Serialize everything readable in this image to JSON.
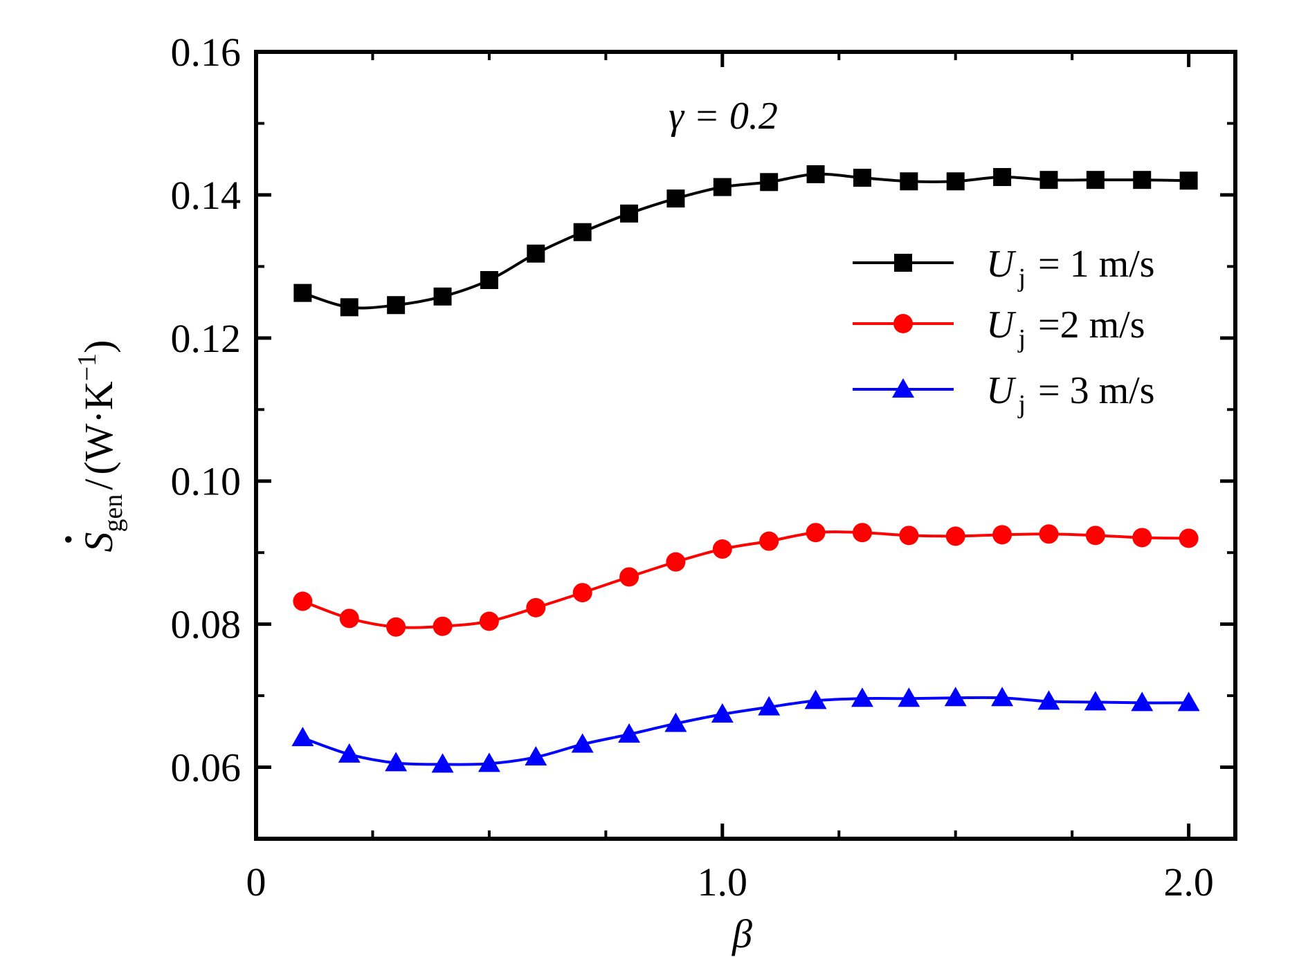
{
  "chart_data": {
    "type": "line",
    "xlabel": "β",
    "ylabel": {
      "symbol": "S",
      "dot": "·",
      "subscript": "gen",
      "slash": "/",
      "units": "(W·K",
      "superscript": "−1",
      "close": ")"
    },
    "annotation": "γ = 0.2",
    "xlim": [
      0,
      2.1
    ],
    "ylim": [
      0.05,
      0.16
    ],
    "xticks": [
      {
        "value": 0,
        "label": "0"
      },
      {
        "value": 1.0,
        "label": "1.0"
      },
      {
        "value": 2.0,
        "label": "2.0"
      }
    ],
    "xminor": [
      0.25,
      0.5,
      0.75,
      1.25,
      1.5,
      1.75
    ],
    "yticks": [
      {
        "value": 0.06,
        "label": "0.06"
      },
      {
        "value": 0.08,
        "label": "0.08"
      },
      {
        "value": 0.1,
        "label": "0.10"
      },
      {
        "value": 0.12,
        "label": "0.12"
      },
      {
        "value": 0.14,
        "label": "0.14"
      },
      {
        "value": 0.16,
        "label": "0.16"
      }
    ],
    "yminor": [
      0.05,
      0.07,
      0.09,
      0.11,
      0.13,
      0.15
    ],
    "legend_position": "right",
    "x": [
      0.1,
      0.2,
      0.3,
      0.4,
      0.5,
      0.6,
      0.7,
      0.8,
      0.9,
      1.0,
      1.1,
      1.2,
      1.3,
      1.4,
      1.5,
      1.6,
      1.7,
      1.8,
      1.9,
      2.0
    ],
    "series": [
      {
        "name": "U",
        "sub": "j",
        "rest": "= 1 m/s",
        "color": "#000000",
        "marker": "square",
        "values": [
          0.1263,
          0.1243,
          0.1246,
          0.1258,
          0.1281,
          0.1318,
          0.1348,
          0.1374,
          0.1395,
          0.1411,
          0.1418,
          0.1429,
          0.1424,
          0.1419,
          0.1419,
          0.1425,
          0.1421,
          0.1421,
          0.1421,
          0.142
        ]
      },
      {
        "name": "U",
        "sub": "j",
        "rest": "=2 m/s",
        "color": "#ff0000",
        "marker": "circle",
        "values": [
          0.0832,
          0.0808,
          0.0796,
          0.0797,
          0.0804,
          0.0823,
          0.0844,
          0.0866,
          0.0887,
          0.0905,
          0.0916,
          0.0928,
          0.0928,
          0.0924,
          0.0923,
          0.0925,
          0.0926,
          0.0924,
          0.0921,
          0.092
        ]
      },
      {
        "name": "U",
        "sub": "j",
        "rest": "= 3 m/s",
        "color": "#0000ff",
        "marker": "triangle",
        "values": [
          0.0641,
          0.0618,
          0.0606,
          0.0604,
          0.0605,
          0.0614,
          0.0632,
          0.0646,
          0.0661,
          0.0674,
          0.0684,
          0.0693,
          0.0696,
          0.0696,
          0.0697,
          0.0697,
          0.0692,
          0.0691,
          0.069,
          0.069
        ]
      }
    ]
  }
}
